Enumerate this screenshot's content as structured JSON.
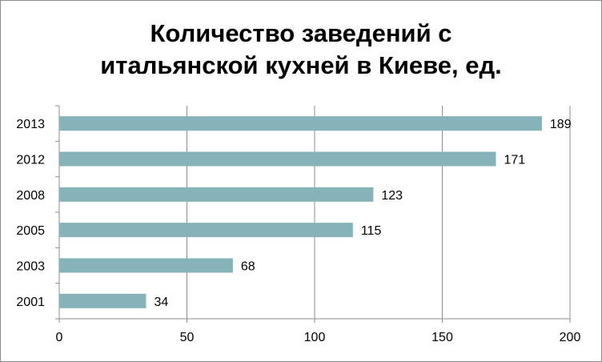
{
  "chart_data": {
    "type": "bar",
    "orientation": "horizontal",
    "title_lines": [
      "Количество заведений с",
      "итальянской кухней в Киеве, ед."
    ],
    "categories": [
      "2013",
      "2012",
      "2008",
      "2005",
      "2003",
      "2001"
    ],
    "values": [
      189,
      171,
      123,
      115,
      68,
      34
    ],
    "data_labels": [
      "189",
      "171",
      "123",
      "115",
      "68",
      "34"
    ],
    "x_ticks": [
      "0",
      "50",
      "100",
      "150",
      "200"
    ],
    "xlim": [
      0,
      200
    ],
    "grid": "vertical",
    "bar_color": "#86b2ba",
    "legend": "none"
  }
}
